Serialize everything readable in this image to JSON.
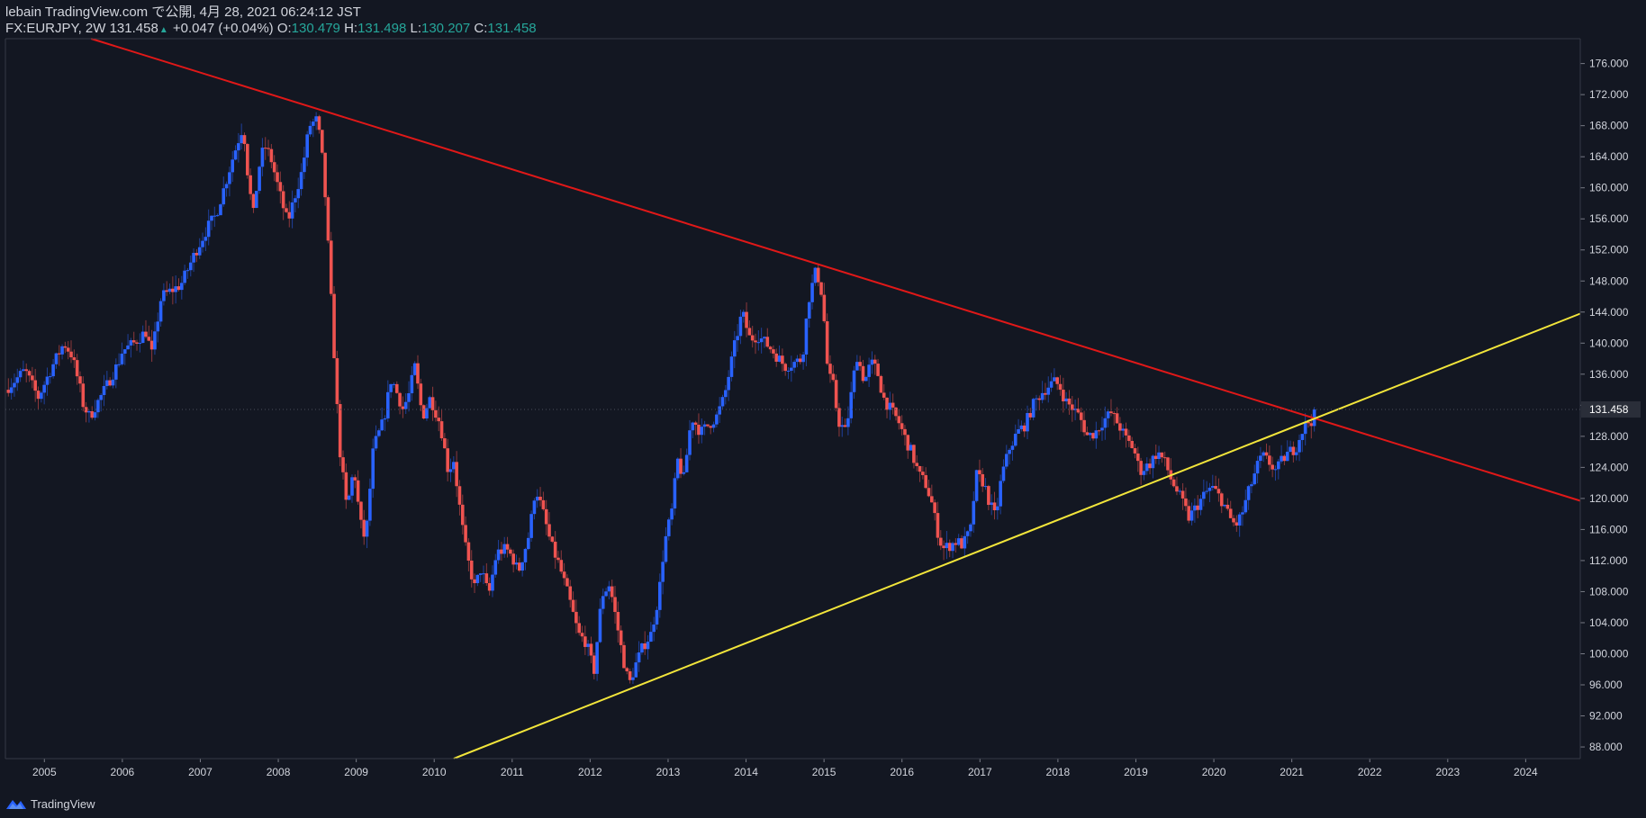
{
  "header": {
    "publisher": "lebain TradingView.com で公開, 4月 28, 2021 06:24:12 JST",
    "symbol": "FX:EURJPY, 2W",
    "last": "131.458",
    "change": "+0.047 (+0.04%)",
    "o_label": "O:",
    "o_value": "130.479",
    "h_label": "H:",
    "h_value": "131.498",
    "l_label": "L:",
    "l_value": "130.207",
    "c_label": "C:",
    "c_value": "131.458"
  },
  "footer": {
    "brand": "TradingView",
    "icon": "tradingview-logo-icon"
  },
  "colors": {
    "background": "#131722",
    "up": "#2962ff",
    "down": "#ef5350",
    "resistance_line": "#e01818",
    "support_line": "#f2e53b",
    "price_label_bg": "#2a2e39",
    "axis_text": "#d1d4dc"
  },
  "chart_data": {
    "type": "candlestick",
    "symbol": "FX:EURJPY",
    "interval": "2W",
    "grid": false,
    "x_ticks": [
      "2005",
      "2006",
      "2007",
      "2008",
      "2009",
      "2010",
      "2011",
      "2012",
      "2013",
      "2014",
      "2015",
      "2016",
      "2017",
      "2018",
      "2019",
      "2020",
      "2021",
      "2022",
      "2023",
      "2024"
    ],
    "y_ticks": [
      "176.000",
      "172.000",
      "168.000",
      "164.000",
      "160.000",
      "156.000",
      "152.000",
      "148.000",
      "144.000",
      "140.000",
      "136.000",
      "132.000",
      "128.000",
      "124.000",
      "120.000",
      "116.000",
      "112.000",
      "108.000",
      "104.000",
      "100.000",
      "96.000",
      "92.000",
      "88.000"
    ],
    "y_range": [
      86.5,
      179.2
    ],
    "x_range": [
      2004.5,
      2024.7
    ],
    "current_price": 131.458,
    "current_price_label": "131.458",
    "price_path": [
      [
        2004.5,
        134.0
      ],
      [
        2004.75,
        136.5
      ],
      [
        2004.92,
        133.0
      ],
      [
        2005.1,
        137.0
      ],
      [
        2005.25,
        140.0
      ],
      [
        2005.35,
        138.5
      ],
      [
        2005.45,
        134.5
      ],
      [
        2005.5,
        132.0
      ],
      [
        2005.58,
        130.5
      ],
      [
        2005.8,
        134.5
      ],
      [
        2005.95,
        137.5
      ],
      [
        2006.0,
        139.0
      ],
      [
        2006.15,
        140.0
      ],
      [
        2006.3,
        141.5
      ],
      [
        2006.38,
        138.5
      ],
      [
        2006.5,
        146.0
      ],
      [
        2006.75,
        147.5
      ],
      [
        2006.95,
        152.0
      ],
      [
        2007.1,
        155.0
      ],
      [
        2007.2,
        156.5
      ],
      [
        2007.32,
        160.5
      ],
      [
        2007.42,
        164.0
      ],
      [
        2007.5,
        166.5
      ],
      [
        2007.55,
        168.0
      ],
      [
        2007.62,
        160.5
      ],
      [
        2007.68,
        156.5
      ],
      [
        2007.75,
        162.5
      ],
      [
        2007.82,
        165.5
      ],
      [
        2007.9,
        164.0
      ],
      [
        2008.05,
        158.0
      ],
      [
        2008.12,
        155.5
      ],
      [
        2008.2,
        158.5
      ],
      [
        2008.3,
        162.0
      ],
      [
        2008.4,
        168.0
      ],
      [
        2008.5,
        168.8
      ],
      [
        2008.58,
        162.5
      ],
      [
        2008.64,
        152.5
      ],
      [
        2008.72,
        138.0
      ],
      [
        2008.78,
        127.0
      ],
      [
        2008.88,
        118.5
      ],
      [
        2008.97,
        124.0
      ],
      [
        2009.05,
        117.0
      ],
      [
        2009.12,
        114.5
      ],
      [
        2009.22,
        126.5
      ],
      [
        2009.35,
        130.0
      ],
      [
        2009.45,
        135.5
      ],
      [
        2009.6,
        131.5
      ],
      [
        2009.68,
        133.5
      ],
      [
        2009.75,
        137.0
      ],
      [
        2009.85,
        130.5
      ],
      [
        2009.95,
        133.0
      ],
      [
        2010.08,
        129.5
      ],
      [
        2010.18,
        123.5
      ],
      [
        2010.25,
        125.0
      ],
      [
        2010.35,
        117.0
      ],
      [
        2010.42,
        112.5
      ],
      [
        2010.52,
        108.5
      ],
      [
        2010.6,
        111.0
      ],
      [
        2010.7,
        107.5
      ],
      [
        2010.8,
        113.0
      ],
      [
        2010.92,
        113.5
      ],
      [
        2011.0,
        112.5
      ],
      [
        2011.08,
        110.5
      ],
      [
        2011.22,
        115.5
      ],
      [
        2011.3,
        121.5
      ],
      [
        2011.4,
        118.0
      ],
      [
        2011.5,
        114.0
      ],
      [
        2011.6,
        111.5
      ],
      [
        2011.72,
        107.5
      ],
      [
        2011.85,
        102.5
      ],
      [
        2011.95,
        101.5
      ],
      [
        2012.0,
        99.5
      ],
      [
        2012.05,
        97.8
      ],
      [
        2012.15,
        107.5
      ],
      [
        2012.25,
        109.0
      ],
      [
        2012.35,
        103.5
      ],
      [
        2012.42,
        99.5
      ],
      [
        2012.5,
        96.0
      ],
      [
        2012.58,
        98.5
      ],
      [
        2012.68,
        101.0
      ],
      [
        2012.78,
        102.5
      ],
      [
        2012.88,
        107.5
      ],
      [
        2012.95,
        114.0
      ],
      [
        2013.05,
        118.5
      ],
      [
        2013.12,
        125.0
      ],
      [
        2013.2,
        122.5
      ],
      [
        2013.3,
        130.5
      ],
      [
        2013.42,
        128.5
      ],
      [
        2013.52,
        129.5
      ],
      [
        2013.62,
        130.5
      ],
      [
        2013.72,
        133.0
      ],
      [
        2013.85,
        139.5
      ],
      [
        2013.95,
        144.0
      ],
      [
        2014.05,
        140.5
      ],
      [
        2014.15,
        141.0
      ],
      [
        2014.3,
        139.5
      ],
      [
        2014.42,
        138.0
      ],
      [
        2014.5,
        137.0
      ],
      [
        2014.62,
        137.5
      ],
      [
        2014.72,
        138.0
      ],
      [
        2014.8,
        145.5
      ],
      [
        2014.9,
        149.5
      ],
      [
        2014.98,
        146.0
      ],
      [
        2015.05,
        136.0
      ],
      [
        2015.12,
        134.5
      ],
      [
        2015.18,
        130.0
      ],
      [
        2015.28,
        128.5
      ],
      [
        2015.35,
        133.5
      ],
      [
        2015.42,
        138.5
      ],
      [
        2015.52,
        135.0
      ],
      [
        2015.6,
        137.5
      ],
      [
        2015.68,
        136.5
      ],
      [
        2015.76,
        133.0
      ],
      [
        2015.85,
        131.5
      ],
      [
        2015.95,
        130.0
      ],
      [
        2016.05,
        127.5
      ],
      [
        2016.12,
        126.0
      ],
      [
        2016.22,
        123.0
      ],
      [
        2016.3,
        122.0
      ],
      [
        2016.38,
        119.5
      ],
      [
        2016.45,
        116.0
      ],
      [
        2016.52,
        113.5
      ],
      [
        2016.62,
        114.0
      ],
      [
        2016.7,
        114.5
      ],
      [
        2016.78,
        114.0
      ],
      [
        2016.88,
        116.0
      ],
      [
        2016.95,
        123.0
      ],
      [
        2017.05,
        122.0
      ],
      [
        2017.12,
        119.5
      ],
      [
        2017.2,
        117.5
      ],
      [
        2017.28,
        123.0
      ],
      [
        2017.38,
        126.5
      ],
      [
        2017.48,
        128.5
      ],
      [
        2017.58,
        129.5
      ],
      [
        2017.68,
        132.0
      ],
      [
        2017.78,
        133.5
      ],
      [
        2017.88,
        134.5
      ],
      [
        2017.95,
        135.0
      ],
      [
        2018.02,
        134.5
      ],
      [
        2018.1,
        132.5
      ],
      [
        2018.2,
        131.5
      ],
      [
        2018.28,
        130.5
      ],
      [
        2018.38,
        128.0
      ],
      [
        2018.48,
        128.5
      ],
      [
        2018.58,
        130.0
      ],
      [
        2018.68,
        131.0
      ],
      [
        2018.78,
        129.5
      ],
      [
        2018.88,
        127.5
      ],
      [
        2018.97,
        126.5
      ],
      [
        2019.05,
        123.5
      ],
      [
        2019.18,
        124.5
      ],
      [
        2019.28,
        126.0
      ],
      [
        2019.38,
        124.5
      ],
      [
        2019.45,
        122.5
      ],
      [
        2019.55,
        120.5
      ],
      [
        2019.62,
        119.0
      ],
      [
        2019.68,
        117.5
      ],
      [
        2019.78,
        119.0
      ],
      [
        2019.88,
        120.5
      ],
      [
        2019.97,
        121.5
      ],
      [
        2020.05,
        120.5
      ],
      [
        2020.12,
        119.5
      ],
      [
        2020.2,
        117.5
      ],
      [
        2020.28,
        116.5
      ],
      [
        2020.36,
        118.0
      ],
      [
        2020.45,
        121.0
      ],
      [
        2020.55,
        124.0
      ],
      [
        2020.62,
        125.5
      ],
      [
        2020.72,
        124.5
      ],
      [
        2020.8,
        123.5
      ],
      [
        2020.88,
        125.0
      ],
      [
        2020.97,
        126.0
      ],
      [
        2021.05,
        126.5
      ],
      [
        2021.12,
        128.5
      ],
      [
        2021.2,
        129.8
      ],
      [
        2021.28,
        130.2
      ],
      [
        2021.32,
        131.458
      ]
    ],
    "trend_lines": [
      {
        "name": "resistance",
        "from": [
          2005.6,
          179.2
        ],
        "to": [
          2024.7,
          119.7
        ]
      },
      {
        "name": "support",
        "from": [
          2010.25,
          86.5
        ],
        "to": [
          2024.7,
          143.8
        ]
      }
    ]
  }
}
